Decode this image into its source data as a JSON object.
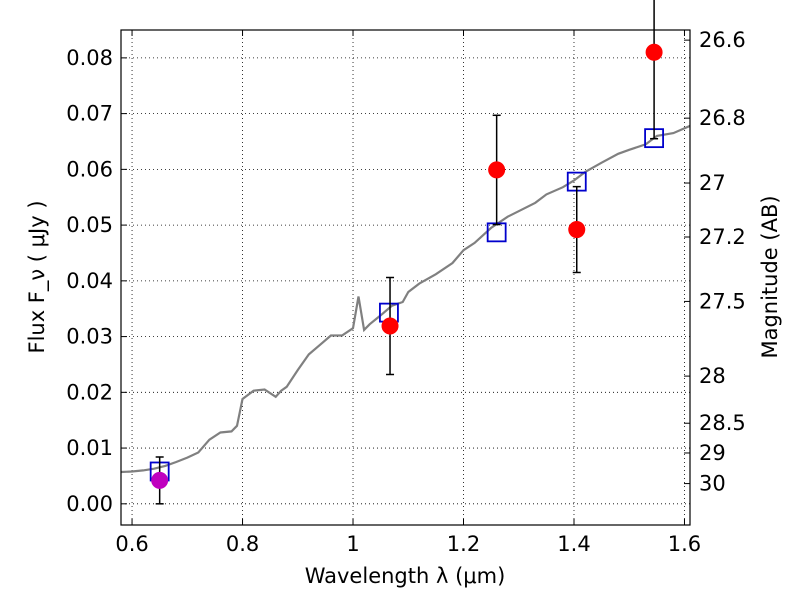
{
  "chart_data": {
    "type": "scatter",
    "xlabel": "Wavelength  λ (μm)",
    "ylabel_left": "Flux  F_ν  ( μJy )",
    "ylabel_right": "Magnitude (AB)",
    "xlim": [
      0.58,
      1.61
    ],
    "ylim": [
      -0.0038,
      0.085
    ],
    "grid": true,
    "x_ticks": [
      0.6,
      0.8,
      1,
      1.2,
      1.4,
      1.6
    ],
    "x_tick_labels": [
      "0.6",
      "0.8",
      "1",
      "1.2",
      "1.4",
      "1.6"
    ],
    "y_ticks": [
      0.0,
      0.01,
      0.02,
      0.03,
      0.04,
      0.05,
      0.06,
      0.07,
      0.08
    ],
    "y_tick_labels": [
      "0.00",
      "0.01",
      "0.02",
      "0.03",
      "0.04",
      "0.05",
      "0.06",
      "0.07",
      "0.08"
    ],
    "mag_ticks": [
      26.6,
      26.8,
      27,
      27.2,
      27.5,
      28,
      28.5,
      29,
      30
    ],
    "mag_tick_labels": [
      "26.6",
      "26.8",
      "27",
      "27.2",
      "27.5",
      "28",
      "28.5",
      "29",
      "30"
    ],
    "colors": {
      "template": "#808080",
      "model": "#0000cc",
      "observed": "#ff0000",
      "highlight": "#bf00bf",
      "errorbar": "#000000"
    },
    "template_spectrum": {
      "x": [
        0.58,
        0.6,
        0.62,
        0.64,
        0.66,
        0.68,
        0.7,
        0.72,
        0.74,
        0.76,
        0.78,
        0.79,
        0.8,
        0.82,
        0.84,
        0.86,
        0.87,
        0.88,
        0.9,
        0.92,
        0.94,
        0.96,
        0.98,
        1.0,
        1.01,
        1.02,
        1.03,
        1.05,
        1.07,
        1.09,
        1.1,
        1.12,
        1.15,
        1.18,
        1.2,
        1.22,
        1.25,
        1.28,
        1.3,
        1.33,
        1.35,
        1.38,
        1.4,
        1.42,
        1.45,
        1.48,
        1.5,
        1.53,
        1.55,
        1.58,
        1.61
      ],
      "y": [
        0.0057,
        0.0058,
        0.006,
        0.0063,
        0.0068,
        0.0075,
        0.0083,
        0.0092,
        0.0115,
        0.0128,
        0.013,
        0.014,
        0.0188,
        0.0203,
        0.0205,
        0.0192,
        0.0203,
        0.021,
        0.024,
        0.0268,
        0.0285,
        0.0302,
        0.0302,
        0.0315,
        0.0372,
        0.0312,
        0.0322,
        0.0338,
        0.0355,
        0.0362,
        0.038,
        0.0395,
        0.0412,
        0.0432,
        0.0455,
        0.0468,
        0.0495,
        0.0515,
        0.0525,
        0.054,
        0.0555,
        0.0568,
        0.058,
        0.0595,
        0.0612,
        0.0628,
        0.0635,
        0.0645,
        0.066,
        0.0665,
        0.0678
      ]
    },
    "series": [
      {
        "marker": "open-square",
        "points": [
          {
            "x": 0.65,
            "y": 0.0058
          },
          {
            "x": 1.065,
            "y": 0.0343
          },
          {
            "x": 1.26,
            "y": 0.0487
          },
          {
            "x": 1.405,
            "y": 0.0578
          },
          {
            "x": 1.545,
            "y": 0.0656
          }
        ]
      },
      {
        "marker": "filled-circle",
        "points": [
          {
            "x": 1.067,
            "y": 0.0319,
            "yerr": 0.0087
          },
          {
            "x": 1.26,
            "y": 0.0599,
            "yerr": 0.0098
          },
          {
            "x": 1.405,
            "y": 0.0492,
            "yerr": 0.0077
          },
          {
            "x": 1.545,
            "y": 0.081,
            "yerr": 0.0155
          }
        ]
      },
      {
        "marker": "filled-circle-highlight",
        "points": [
          {
            "x": 0.65,
            "y": 0.0042,
            "yerr": 0.0042
          }
        ]
      }
    ]
  }
}
